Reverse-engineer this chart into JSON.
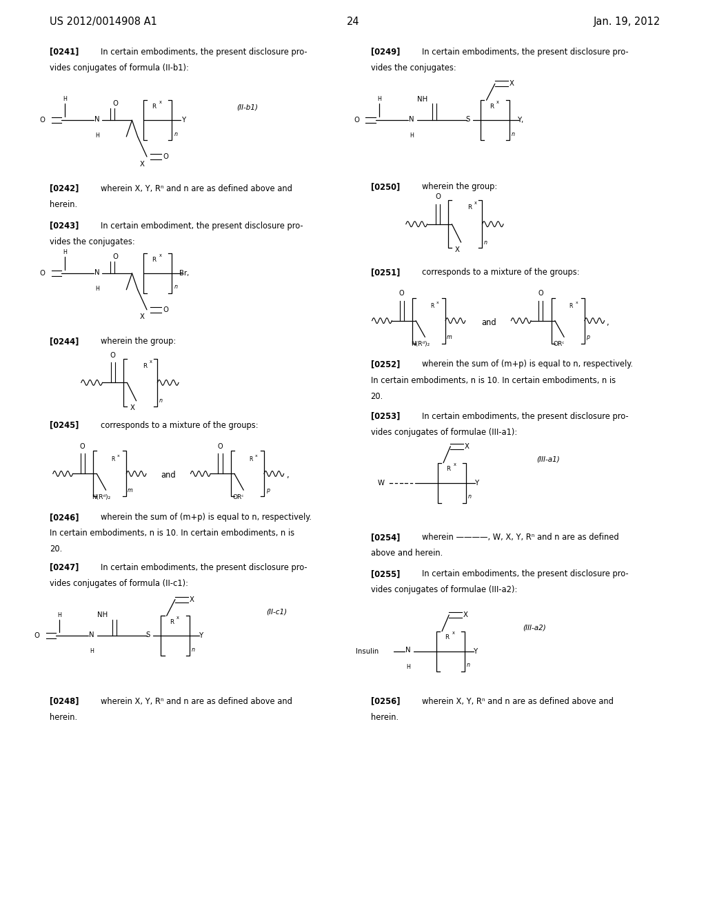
{
  "bg_color": "#ffffff",
  "header_left": "US 2012/0014908 A1",
  "header_right": "Jan. 19, 2012",
  "page_number": "24"
}
